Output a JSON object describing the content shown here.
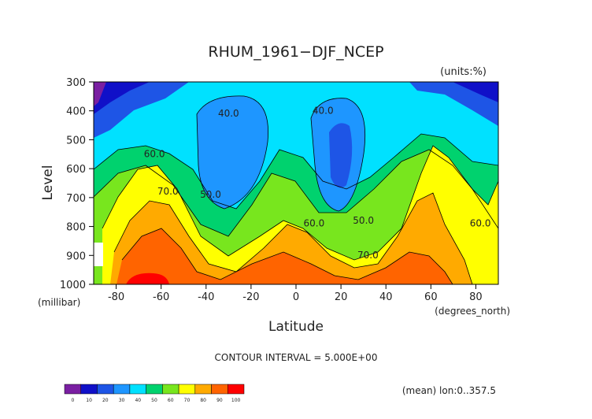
{
  "chart_data": {
    "type": "contour",
    "title": "RHUM_1961−DJF_NCEP",
    "units_label": "(units:%)",
    "xlabel": "Latitude",
    "ylabel": "Level",
    "xunits": "(degrees_north)",
    "yunits": "(millibar)",
    "xlim": [
      -90,
      90
    ],
    "ylim": [
      300,
      1000
    ],
    "y_inverted": true,
    "x_ticks": [
      "-80",
      "-60",
      "-40",
      "-20",
      "0",
      "20",
      "40",
      "60",
      "80"
    ],
    "y_ticks": [
      "300",
      "400",
      "500",
      "600",
      "700",
      "800",
      "900",
      "1000"
    ],
    "contour_interval_label": "CONTOUR INTERVAL = 5.000E+00",
    "footnote": "(mean) lon:0..357.5",
    "contour_labels": [
      {
        "text": "40.0",
        "x": -30,
        "y": 420
      },
      {
        "text": "40.0",
        "x": 12,
        "y": 410
      },
      {
        "text": "60.0",
        "x": -63,
        "y": 560
      },
      {
        "text": "70.0",
        "x": -57,
        "y": 690
      },
      {
        "text": "50.0",
        "x": -38,
        "y": 700
      },
      {
        "text": "60.0",
        "x": 8,
        "y": 800
      },
      {
        "text": "50.0",
        "x": 30,
        "y": 790
      },
      {
        "text": "70.0",
        "x": 32,
        "y": 910
      },
      {
        "text": "60.0",
        "x": 82,
        "y": 800
      }
    ],
    "colorbar": {
      "levels": [
        "0",
        "10",
        "20",
        "30",
        "40",
        "50",
        "60",
        "70",
        "80",
        "90",
        "100"
      ],
      "colors": [
        "#7a1fa2",
        "#1010c8",
        "#1e55e6",
        "#1e96ff",
        "#00e1ff",
        "#00d26e",
        "#78e61e",
        "#ffff00",
        "#ffaa00",
        "#ff6400",
        "#ff0000"
      ]
    }
  }
}
